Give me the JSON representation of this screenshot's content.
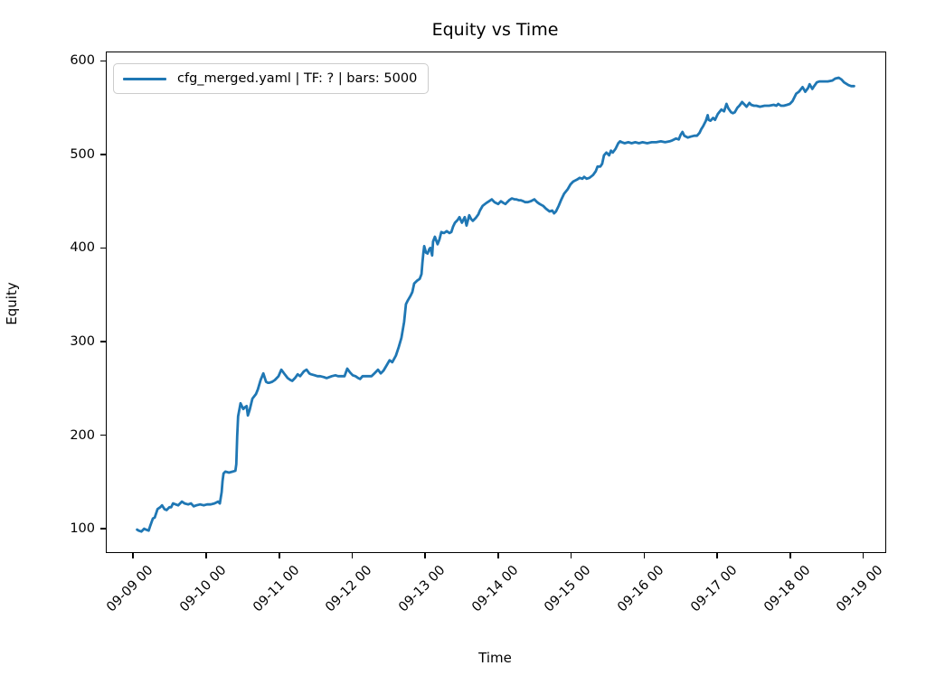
{
  "chart_data": {
    "type": "line",
    "title": "Equity vs Time",
    "xlabel": "Time",
    "ylabel": "Equity",
    "grid": false,
    "legend_position": "upper left",
    "legend": [
      {
        "label": "cfg_merged.yaml | TF: ? | bars: 5000",
        "color": "#1f77b4"
      }
    ],
    "x_axis": {
      "tick_labels": [
        "09-09 00",
        "09-10 00",
        "09-11 00",
        "09-12 00",
        "09-13 00",
        "09-14 00",
        "09-15 00",
        "09-16 00",
        "09-17 00",
        "09-18 00",
        "09-19 00"
      ],
      "tick_hours": [
        0,
        24,
        48,
        72,
        96,
        120,
        144,
        168,
        192,
        216,
        240
      ],
      "xlim_hours": [
        -9,
        247
      ],
      "tick_rotation_deg": 45
    },
    "y_axis": {
      "ticks": [
        100,
        200,
        300,
        400,
        500,
        600
      ],
      "ylim": [
        76,
        610
      ]
    },
    "series": [
      {
        "name": "cfg_merged.yaml | TF: ? | bars: 5000",
        "color": "#1f77b4",
        "points_hours_equity": [
          [
            1,
            100
          ],
          [
            1.5,
            99
          ],
          [
            2.4,
            98
          ],
          [
            3.3,
            101
          ],
          [
            3.9,
            100
          ],
          [
            4.8,
            99
          ],
          [
            5.3,
            104
          ],
          [
            6.2,
            112
          ],
          [
            6.8,
            113
          ],
          [
            7.7,
            122
          ],
          [
            8.6,
            124
          ],
          [
            9.2,
            126
          ],
          [
            10,
            122
          ],
          [
            10.7,
            121
          ],
          [
            11.6,
            124
          ],
          [
            12.2,
            124
          ],
          [
            12.8,
            128
          ],
          [
            13.7,
            127
          ],
          [
            14.5,
            126
          ],
          [
            15.7,
            130
          ],
          [
            16.6,
            128
          ],
          [
            17.8,
            127
          ],
          [
            18.7,
            128
          ],
          [
            19.6,
            125
          ],
          [
            20.5,
            126
          ],
          [
            21.7,
            127
          ],
          [
            22.9,
            126
          ],
          [
            24,
            127
          ],
          [
            25.2,
            127
          ],
          [
            26.4,
            128
          ],
          [
            27.6,
            130
          ],
          [
            28.2,
            128
          ],
          [
            28.8,
            140
          ],
          [
            29.1,
            152
          ],
          [
            29.4,
            160
          ],
          [
            30,
            162
          ],
          [
            31.2,
            161
          ],
          [
            32.4,
            162
          ],
          [
            33.3,
            163
          ],
          [
            33.6,
            170
          ],
          [
            33.9,
            200
          ],
          [
            34.2,
            221
          ],
          [
            35,
            235
          ],
          [
            35.9,
            229
          ],
          [
            36.5,
            231
          ],
          [
            37,
            232
          ],
          [
            37.4,
            222
          ],
          [
            38,
            228
          ],
          [
            38.9,
            240
          ],
          [
            40.1,
            245
          ],
          [
            40.7,
            250
          ],
          [
            41.6,
            260
          ],
          [
            42.5,
            267
          ],
          [
            43.4,
            258
          ],
          [
            44,
            257
          ],
          [
            44.5,
            257
          ],
          [
            45.4,
            258
          ],
          [
            46.3,
            260
          ],
          [
            47.5,
            264
          ],
          [
            48.4,
            271
          ],
          [
            49.3,
            267
          ],
          [
            50.5,
            262
          ],
          [
            51.4,
            260
          ],
          [
            52,
            259
          ],
          [
            52.9,
            262
          ],
          [
            53.8,
            266
          ],
          [
            54.6,
            264
          ],
          [
            55.8,
            269
          ],
          [
            56.7,
            271
          ],
          [
            57.6,
            267
          ],
          [
            58.2,
            266
          ],
          [
            59.4,
            265
          ],
          [
            60.3,
            264
          ],
          [
            61.2,
            264
          ],
          [
            62.4,
            263
          ],
          [
            63.3,
            262
          ],
          [
            64.2,
            263
          ],
          [
            65,
            264
          ],
          [
            66.2,
            265
          ],
          [
            67.1,
            264
          ],
          [
            68,
            264
          ],
          [
            69.2,
            264
          ],
          [
            70.1,
            272
          ],
          [
            71,
            268
          ],
          [
            71.9,
            265
          ],
          [
            72.8,
            264
          ],
          [
            73.7,
            262
          ],
          [
            74.3,
            261
          ],
          [
            75.1,
            264
          ],
          [
            76.3,
            264
          ],
          [
            77.2,
            264
          ],
          [
            78.1,
            264
          ],
          [
            79,
            267
          ],
          [
            80.2,
            271
          ],
          [
            81.1,
            267
          ],
          [
            82,
            270
          ],
          [
            83.1,
            276
          ],
          [
            84,
            281
          ],
          [
            84.9,
            279
          ],
          [
            86.1,
            286
          ],
          [
            87,
            295
          ],
          [
            87.9,
            305
          ],
          [
            88.8,
            322
          ],
          [
            89.4,
            341
          ],
          [
            90,
            345
          ],
          [
            90.9,
            350
          ],
          [
            91.5,
            354
          ],
          [
            92.1,
            363
          ],
          [
            93,
            366
          ],
          [
            93.9,
            368
          ],
          [
            94.5,
            373
          ],
          [
            94.8,
            385
          ],
          [
            95.1,
            395
          ],
          [
            95.4,
            403
          ],
          [
            96,
            396
          ],
          [
            96.5,
            395
          ],
          [
            97.1,
            400
          ],
          [
            97.4,
            401
          ],
          [
            98,
            393
          ],
          [
            98.3,
            408
          ],
          [
            98.9,
            413
          ],
          [
            99.8,
            405
          ],
          [
            100.4,
            410
          ],
          [
            101,
            418
          ],
          [
            101.9,
            417
          ],
          [
            102.8,
            419
          ],
          [
            103.7,
            417
          ],
          [
            104.3,
            418
          ],
          [
            104.9,
            424
          ],
          [
            105.5,
            428
          ],
          [
            106.4,
            431
          ],
          [
            107,
            434
          ],
          [
            107.8,
            428
          ],
          [
            108.7,
            434
          ],
          [
            109.3,
            425
          ],
          [
            110.2,
            436
          ],
          [
            110.8,
            432
          ],
          [
            111.4,
            430
          ],
          [
            112.3,
            433
          ],
          [
            113.2,
            437
          ],
          [
            113.7,
            441
          ],
          [
            114.6,
            446
          ],
          [
            115.8,
            449
          ],
          [
            116.7,
            451
          ],
          [
            117.6,
            453
          ],
          [
            118.5,
            450
          ],
          [
            119.1,
            449
          ],
          [
            119.7,
            448
          ],
          [
            120.6,
            451
          ],
          [
            121.5,
            449
          ],
          [
            122.1,
            448
          ],
          [
            122.7,
            450
          ],
          [
            123.3,
            452
          ],
          [
            124.2,
            454
          ],
          [
            125.1,
            453
          ],
          [
            125.6,
            453
          ],
          [
            126.5,
            452
          ],
          [
            127.1,
            452
          ],
          [
            128,
            451
          ],
          [
            128.6,
            450
          ],
          [
            129.5,
            450
          ],
          [
            130.4,
            451
          ],
          [
            131.6,
            453
          ],
          [
            132.5,
            450
          ],
          [
            133.4,
            448
          ],
          [
            134.5,
            446
          ],
          [
            135.4,
            443
          ],
          [
            136.6,
            440
          ],
          [
            137.5,
            441
          ],
          [
            138.1,
            438
          ],
          [
            138.7,
            440
          ],
          [
            139.6,
            446
          ],
          [
            140.5,
            453
          ],
          [
            141.4,
            459
          ],
          [
            142.6,
            464
          ],
          [
            143.5,
            469
          ],
          [
            144.4,
            472
          ],
          [
            145.6,
            474
          ],
          [
            146.5,
            476
          ],
          [
            147.4,
            475
          ],
          [
            148,
            477
          ],
          [
            148.8,
            475
          ],
          [
            149.7,
            476
          ],
          [
            150.9,
            479
          ],
          [
            151.8,
            483
          ],
          [
            152.4,
            488
          ],
          [
            153.3,
            488
          ],
          [
            153.9,
            491
          ],
          [
            154.5,
            500
          ],
          [
            155.3,
            503
          ],
          [
            156.2,
            500
          ],
          [
            156.8,
            505
          ],
          [
            157.4,
            503
          ],
          [
            158.3,
            507
          ],
          [
            159.2,
            513
          ],
          [
            159.8,
            515
          ],
          [
            160.4,
            514
          ],
          [
            161.3,
            513
          ],
          [
            162.5,
            514
          ],
          [
            163.6,
            513
          ],
          [
            164.8,
            514
          ],
          [
            166,
            513
          ],
          [
            167.2,
            514
          ],
          [
            168.7,
            513
          ],
          [
            170.2,
            514
          ],
          [
            171.7,
            514
          ],
          [
            173.2,
            515
          ],
          [
            174.6,
            514
          ],
          [
            176.1,
            515
          ],
          [
            177,
            516
          ],
          [
            178.2,
            518
          ],
          [
            179.1,
            517
          ],
          [
            179.7,
            522
          ],
          [
            180.3,
            525
          ],
          [
            180.9,
            521
          ],
          [
            182.1,
            519
          ],
          [
            183,
            520
          ],
          [
            184.2,
            521
          ],
          [
            185.1,
            521
          ],
          [
            185.9,
            524
          ],
          [
            186.5,
            528
          ],
          [
            187.1,
            531
          ],
          [
            188,
            537
          ],
          [
            188.6,
            543
          ],
          [
            188.9,
            538
          ],
          [
            189.5,
            537
          ],
          [
            190.4,
            540
          ],
          [
            191,
            538
          ],
          [
            191.9,
            544
          ],
          [
            193.1,
            549
          ],
          [
            194,
            547
          ],
          [
            194.8,
            555
          ],
          [
            195.4,
            550
          ],
          [
            196.3,
            546
          ],
          [
            196.9,
            545
          ],
          [
            197.5,
            546
          ],
          [
            198.4,
            551
          ],
          [
            199,
            553
          ],
          [
            199.9,
            557
          ],
          [
            200.8,
            554
          ],
          [
            201.4,
            552
          ],
          [
            202.3,
            556
          ],
          [
            202.9,
            554
          ],
          [
            203.8,
            553
          ],
          [
            204.6,
            553
          ],
          [
            205.8,
            552
          ],
          [
            207.3,
            553
          ],
          [
            208.8,
            553
          ],
          [
            210.3,
            554
          ],
          [
            211.2,
            553
          ],
          [
            211.8,
            555
          ],
          [
            212.7,
            553
          ],
          [
            213.6,
            553
          ],
          [
            214.7,
            554
          ],
          [
            215.6,
            555
          ],
          [
            216.5,
            558
          ],
          [
            217.7,
            566
          ],
          [
            218.6,
            568
          ],
          [
            219.8,
            573
          ],
          [
            220.7,
            568
          ],
          [
            221.6,
            572
          ],
          [
            222.1,
            576
          ],
          [
            223,
            571
          ],
          [
            223.6,
            574
          ],
          [
            224.5,
            578
          ],
          [
            225.4,
            579
          ],
          [
            226.6,
            579
          ],
          [
            228.1,
            579
          ],
          [
            229.6,
            580
          ],
          [
            230.5,
            582
          ],
          [
            231.7,
            583
          ],
          [
            232.6,
            581
          ],
          [
            233.4,
            578
          ],
          [
            234.9,
            575
          ],
          [
            235.8,
            574
          ],
          [
            236.7,
            574
          ]
        ]
      }
    ]
  }
}
